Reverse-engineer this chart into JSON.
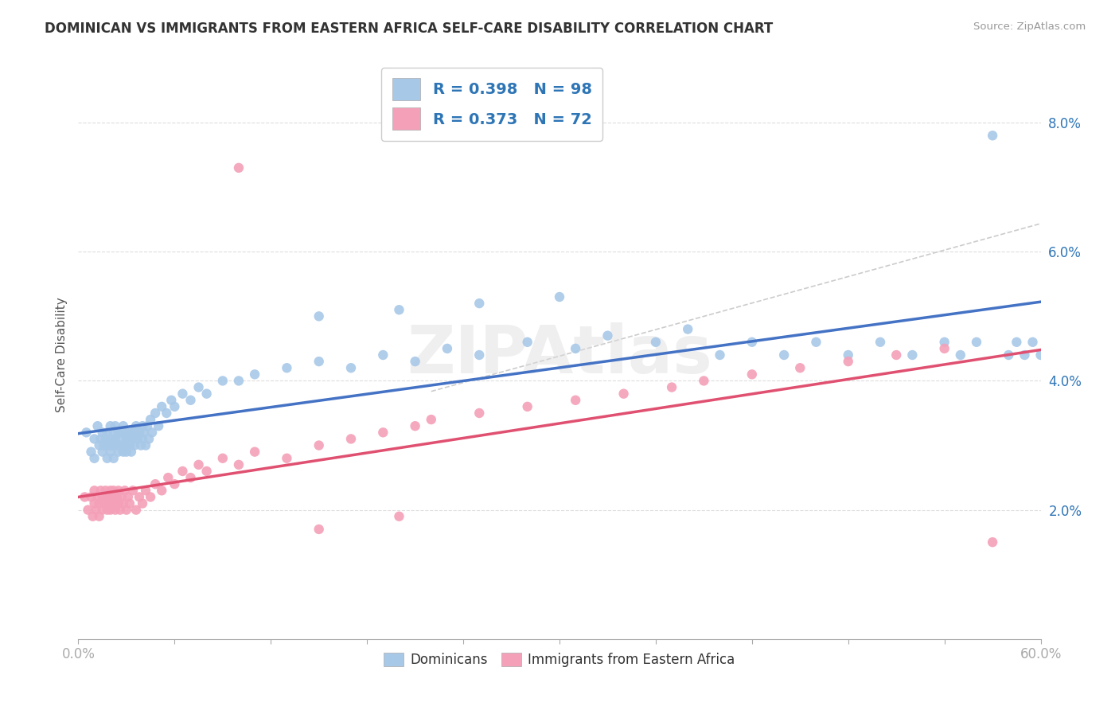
{
  "title": "DOMINICAN VS IMMIGRANTS FROM EASTERN AFRICA SELF-CARE DISABILITY CORRELATION CHART",
  "source": "Source: ZipAtlas.com",
  "ylabel": "Self-Care Disability",
  "xlim": [
    0.0,
    0.6
  ],
  "ylim": [
    0.0,
    0.088
  ],
  "yticks": [
    0.02,
    0.04,
    0.06,
    0.08
  ],
  "ytick_labels": [
    "2.0%",
    "4.0%",
    "6.0%",
    "8.0%"
  ],
  "xticks": [
    0.0,
    0.06,
    0.12,
    0.18,
    0.24,
    0.3,
    0.36,
    0.42,
    0.48,
    0.54,
    0.6
  ],
  "xtick_labels_show": [
    "0.0%",
    "",
    "",
    "",
    "",
    "",
    "",
    "",
    "",
    "",
    "60.0%"
  ],
  "dominicans_R": 0.398,
  "dominicans_N": 98,
  "eastern_africa_R": 0.373,
  "eastern_africa_N": 72,
  "blue_color": "#A8C8E8",
  "pink_color": "#F4A0B8",
  "blue_line_color": "#4472C4",
  "pink_line_color": "#E05070",
  "pink_dash_color": "#E0A0B0",
  "legend_text_color": "#2E75B6",
  "watermark": "ZIPAtlas",
  "dom_x": [
    0.005,
    0.008,
    0.01,
    0.01,
    0.012,
    0.013,
    0.014,
    0.015,
    0.015,
    0.016,
    0.017,
    0.018,
    0.018,
    0.019,
    0.02,
    0.02,
    0.02,
    0.021,
    0.022,
    0.022,
    0.023,
    0.023,
    0.024,
    0.025,
    0.025,
    0.025,
    0.026,
    0.027,
    0.028,
    0.028,
    0.029,
    0.03,
    0.03,
    0.03,
    0.031,
    0.032,
    0.033,
    0.033,
    0.034,
    0.035,
    0.035,
    0.036,
    0.037,
    0.038,
    0.039,
    0.04,
    0.04,
    0.041,
    0.042,
    0.043,
    0.044,
    0.045,
    0.046,
    0.048,
    0.05,
    0.052,
    0.055,
    0.058,
    0.06,
    0.065,
    0.07,
    0.075,
    0.08,
    0.09,
    0.1,
    0.11,
    0.13,
    0.15,
    0.17,
    0.19,
    0.21,
    0.23,
    0.25,
    0.28,
    0.31,
    0.33,
    0.36,
    0.38,
    0.4,
    0.42,
    0.44,
    0.46,
    0.48,
    0.5,
    0.52,
    0.54,
    0.55,
    0.56,
    0.57,
    0.58,
    0.585,
    0.59,
    0.595,
    0.6,
    0.15,
    0.2,
    0.25,
    0.3
  ],
  "dom_y": [
    0.032,
    0.029,
    0.031,
    0.028,
    0.033,
    0.03,
    0.031,
    0.032,
    0.029,
    0.03,
    0.031,
    0.028,
    0.032,
    0.03,
    0.033,
    0.031,
    0.029,
    0.03,
    0.032,
    0.028,
    0.031,
    0.033,
    0.03,
    0.032,
    0.029,
    0.031,
    0.03,
    0.032,
    0.029,
    0.033,
    0.03,
    0.031,
    0.032,
    0.029,
    0.031,
    0.03,
    0.032,
    0.029,
    0.031,
    0.032,
    0.03,
    0.033,
    0.031,
    0.032,
    0.03,
    0.033,
    0.031,
    0.032,
    0.03,
    0.033,
    0.031,
    0.034,
    0.032,
    0.035,
    0.033,
    0.036,
    0.035,
    0.037,
    0.036,
    0.038,
    0.037,
    0.039,
    0.038,
    0.04,
    0.04,
    0.041,
    0.042,
    0.043,
    0.042,
    0.044,
    0.043,
    0.045,
    0.044,
    0.046,
    0.045,
    0.047,
    0.046,
    0.048,
    0.044,
    0.046,
    0.044,
    0.046,
    0.044,
    0.046,
    0.044,
    0.046,
    0.044,
    0.046,
    0.078,
    0.044,
    0.046,
    0.044,
    0.046,
    0.044,
    0.05,
    0.051,
    0.052,
    0.053
  ],
  "ea_x": [
    0.004,
    0.006,
    0.008,
    0.009,
    0.01,
    0.01,
    0.011,
    0.012,
    0.013,
    0.013,
    0.014,
    0.015,
    0.015,
    0.016,
    0.017,
    0.018,
    0.018,
    0.019,
    0.02,
    0.02,
    0.021,
    0.022,
    0.022,
    0.023,
    0.024,
    0.025,
    0.025,
    0.026,
    0.027,
    0.028,
    0.029,
    0.03,
    0.031,
    0.032,
    0.034,
    0.036,
    0.038,
    0.04,
    0.042,
    0.045,
    0.048,
    0.052,
    0.056,
    0.06,
    0.065,
    0.07,
    0.075,
    0.08,
    0.09,
    0.1,
    0.11,
    0.13,
    0.15,
    0.17,
    0.19,
    0.21,
    0.22,
    0.25,
    0.28,
    0.31,
    0.34,
    0.37,
    0.39,
    0.42,
    0.45,
    0.48,
    0.51,
    0.54,
    0.57,
    0.1,
    0.15,
    0.2
  ],
  "ea_y": [
    0.022,
    0.02,
    0.022,
    0.019,
    0.021,
    0.023,
    0.02,
    0.022,
    0.019,
    0.021,
    0.023,
    0.02,
    0.022,
    0.021,
    0.023,
    0.02,
    0.022,
    0.021,
    0.023,
    0.02,
    0.022,
    0.021,
    0.023,
    0.02,
    0.022,
    0.021,
    0.023,
    0.02,
    0.022,
    0.021,
    0.023,
    0.02,
    0.022,
    0.021,
    0.023,
    0.02,
    0.022,
    0.021,
    0.023,
    0.022,
    0.024,
    0.023,
    0.025,
    0.024,
    0.026,
    0.025,
    0.027,
    0.026,
    0.028,
    0.027,
    0.029,
    0.028,
    0.03,
    0.031,
    0.032,
    0.033,
    0.034,
    0.035,
    0.036,
    0.037,
    0.038,
    0.039,
    0.04,
    0.041,
    0.042,
    0.043,
    0.044,
    0.045,
    0.015,
    0.073,
    0.017,
    0.019
  ]
}
